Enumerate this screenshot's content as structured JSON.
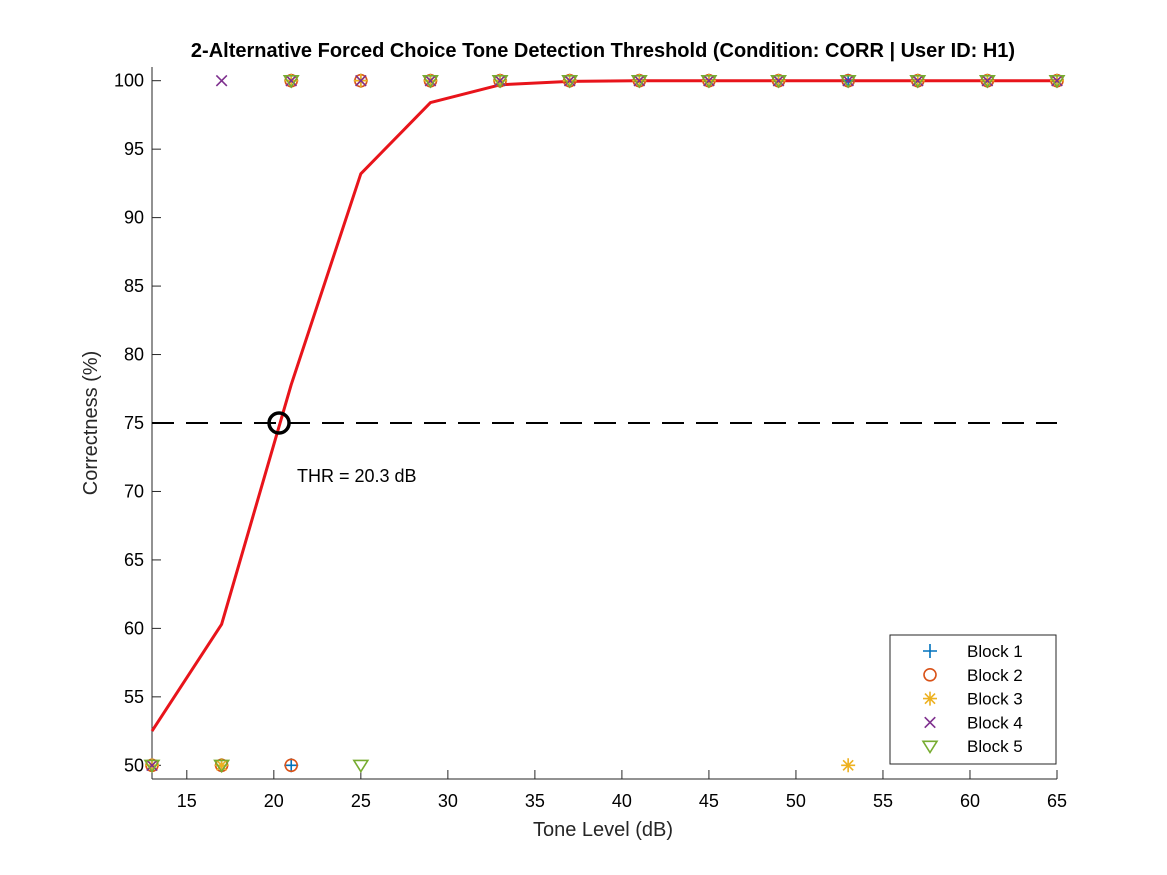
{
  "chart_data": {
    "type": "line",
    "title": "2-Alternative Forced Choice Tone Detection Threshold (Condition: CORR | User ID: H1)",
    "xlabel": "Tone Level (dB)",
    "ylabel": "Correctness (%)",
    "xlim": [
      13,
      65
    ],
    "ylim": [
      49,
      101
    ],
    "xticks": [
      15,
      20,
      25,
      30,
      35,
      40,
      45,
      50,
      55,
      60,
      65
    ],
    "yticks": [
      50,
      55,
      60,
      65,
      70,
      75,
      80,
      85,
      90,
      95,
      100
    ],
    "grid": false,
    "legend_position": "bottom-right",
    "fit": {
      "color": "#e8141b",
      "x": [
        13,
        17,
        21,
        25,
        29,
        33,
        37,
        41,
        45,
        49,
        53,
        57,
        61,
        65
      ],
      "y": [
        52.5,
        60.3,
        77.8,
        93.2,
        98.4,
        99.7,
        99.95,
        100,
        100,
        100,
        100,
        100,
        100,
        100
      ]
    },
    "threshold_line": {
      "y": 75,
      "style": "dashed",
      "color": "#000000"
    },
    "threshold_point": {
      "x": 20.3,
      "y": 75
    },
    "annotation": "THR = 20.3 dB",
    "series": [
      {
        "name": "Block 1",
        "marker": "plus",
        "color": "#0072bd",
        "x": [
          13,
          17,
          21,
          21,
          25,
          29,
          33,
          37,
          41,
          45,
          49,
          53,
          57,
          61,
          65
        ],
        "y": [
          50,
          50,
          50,
          100,
          100,
          100,
          100,
          100,
          100,
          100,
          100,
          100,
          100,
          100,
          100
        ]
      },
      {
        "name": "Block 2",
        "marker": "circle",
        "color": "#d95319",
        "x": [
          13,
          17,
          21,
          21,
          25,
          29,
          33,
          37,
          41,
          45,
          49,
          53,
          57,
          61,
          65
        ],
        "y": [
          50,
          50,
          50,
          100,
          100,
          100,
          100,
          100,
          100,
          100,
          100,
          100,
          100,
          100,
          100
        ]
      },
      {
        "name": "Block 3",
        "marker": "asterisk",
        "color": "#edb120",
        "x": [
          13,
          17,
          21,
          25,
          29,
          33,
          37,
          41,
          45,
          49,
          53,
          57,
          61,
          65
        ],
        "y": [
          50,
          50,
          100,
          100,
          100,
          100,
          100,
          100,
          100,
          100,
          50,
          100,
          100,
          100
        ]
      },
      {
        "name": "Block 4",
        "marker": "x",
        "color": "#7e2f8e",
        "x": [
          13,
          17,
          21,
          25,
          29,
          33,
          37,
          41,
          45,
          49,
          53,
          57,
          61,
          65
        ],
        "y": [
          50,
          100,
          100,
          100,
          100,
          100,
          100,
          100,
          100,
          100,
          100,
          100,
          100,
          100
        ]
      },
      {
        "name": "Block 5",
        "marker": "triangle-down",
        "color": "#77ac30",
        "x": [
          13,
          17,
          21,
          25,
          29,
          33,
          37,
          41,
          45,
          49,
          53,
          57,
          61,
          65
        ],
        "y": [
          50,
          50,
          100,
          50,
          100,
          100,
          100,
          100,
          100,
          100,
          100,
          100,
          100,
          100
        ]
      }
    ]
  }
}
